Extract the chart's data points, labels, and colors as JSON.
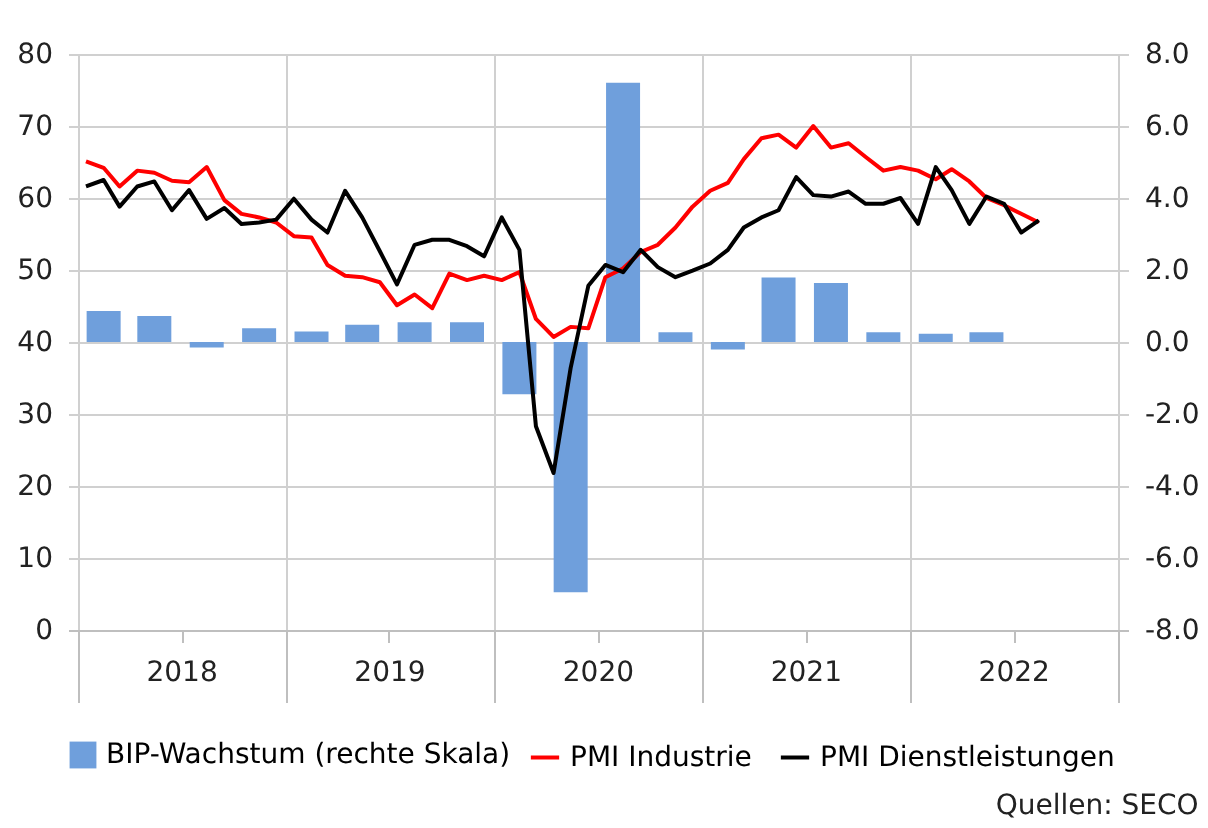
{
  "chart_data": {
    "type": "line",
    "x": [
      "2018-01-15",
      "2018-02-15",
      "2018-03-15",
      "2018-04-15",
      "2018-05-15",
      "2018-06-15",
      "2018-07-15",
      "2018-08-15",
      "2018-09-15",
      "2018-10-15",
      "2018-11-15",
      "2018-12-15",
      "2019-01-15",
      "2019-02-15",
      "2019-03-15",
      "2019-04-15",
      "2019-05-15",
      "2019-06-15",
      "2019-07-15",
      "2019-08-15",
      "2019-09-15",
      "2019-10-15",
      "2019-11-15",
      "2019-12-15",
      "2020-01-15",
      "2020-02-15",
      "2020-03-15",
      "2020-04-15",
      "2020-05-15",
      "2020-06-15",
      "2020-07-15",
      "2020-08-15",
      "2020-09-15",
      "2020-10-15",
      "2020-11-15",
      "2020-12-15",
      "2021-01-15",
      "2021-02-15",
      "2021-03-15",
      "2021-04-15",
      "2021-05-15",
      "2021-06-15",
      "2021-07-15",
      "2021-08-15",
      "2021-09-15",
      "2021-10-15",
      "2021-11-15",
      "2021-12-15",
      "2022-01-15",
      "2022-02-15",
      "2022-03-15",
      "2022-04-15",
      "2022-05-15",
      "2022-06-15",
      "2022-07-15",
      "2022-08-15"
    ],
    "series": [
      {
        "name": "BIP-Wachstum (rechte Skala)",
        "type": "bar",
        "axis": "y2",
        "color": "#6f9fdc",
        "x": [
          "2018-02-15",
          "2018-05-15",
          "2018-08-15",
          "2018-11-15",
          "2019-02-15",
          "2019-05-15",
          "2019-08-15",
          "2019-11-15",
          "2020-02-15",
          "2020-05-15",
          "2020-08-15",
          "2020-11-15",
          "2021-02-15",
          "2021-05-15",
          "2021-08-15",
          "2021-11-15",
          "2022-02-15",
          "2022-05-15"
        ],
        "values": [
          0.86,
          0.72,
          -0.15,
          0.38,
          0.29,
          0.48,
          0.55,
          0.55,
          -1.45,
          -6.95,
          7.2,
          0.27,
          -0.21,
          1.79,
          1.64,
          0.27,
          0.23,
          0.27
        ]
      },
      {
        "name": "PMI Industrie",
        "color": "#ff0000",
        "values": [
          65.1,
          64.2,
          61.6,
          63.8,
          63.5,
          62.4,
          62.2,
          64.3,
          59.7,
          57.8,
          57.3,
          56.6,
          54.7,
          54.5,
          50.7,
          49.2,
          49.0,
          48.3,
          45.1,
          46.6,
          44.7,
          49.5,
          48.6,
          49.2,
          48.6,
          49.7,
          43.2,
          40.7,
          42.1,
          41.9,
          49.0,
          50.2,
          52.5,
          53.5,
          55.9,
          58.8,
          61.0,
          62.1,
          65.4,
          68.3,
          68.8,
          67.0,
          70.0,
          67.0,
          67.6,
          65.7,
          63.8,
          64.3,
          63.8,
          62.6,
          64.0,
          62.3,
          60.0,
          59.0,
          57.8,
          56.6
        ]
      },
      {
        "name": "PMI Dienstleistungen",
        "color": "#000000",
        "values": [
          61.6,
          62.5,
          58.8,
          61.6,
          62.3,
          58.3,
          61.1,
          57.1,
          58.6,
          56.4,
          56.6,
          57.0,
          59.9,
          57.0,
          55.2,
          61.0,
          57.3,
          52.6,
          48.0,
          53.5,
          54.2,
          54.2,
          53.3,
          51.9,
          57.3,
          52.8,
          28.3,
          21.8,
          36.4,
          47.8,
          50.7,
          49.7,
          52.8,
          50.4,
          49.0,
          49.9,
          50.9,
          52.8,
          55.9,
          57.3,
          58.3,
          62.9,
          60.4,
          60.2,
          60.9,
          59.2,
          59.2,
          60.0,
          56.4,
          64.3,
          61.1,
          56.4,
          60.2,
          59.2,
          55.2,
          56.9
        ]
      }
    ],
    "xlim": [
      "2018-01-01",
      "2023-01-01"
    ],
    "xticks": [
      {
        "value": "2018-01-01",
        "label": null
      },
      {
        "value": "2018-07-01",
        "label": "2018"
      },
      {
        "value": "2019-01-01",
        "label": null
      },
      {
        "value": "2019-07-01",
        "label": "2019"
      },
      {
        "value": "2020-01-01",
        "label": null
      },
      {
        "value": "2020-07-01",
        "label": "2020"
      },
      {
        "value": "2021-01-01",
        "label": null
      },
      {
        "value": "2021-07-01",
        "label": "2021"
      },
      {
        "value": "2022-01-01",
        "label": null
      },
      {
        "value": "2022-07-01",
        "label": "2022"
      },
      {
        "value": "2023-01-01",
        "label": null
      }
    ],
    "ylim": [
      0,
      80
    ],
    "yticks": [
      0,
      10,
      20,
      30,
      40,
      50,
      60,
      70,
      80
    ],
    "y2lim": [
      -8,
      8
    ],
    "y2ticks": [
      {
        "value": -8,
        "label": "-8.0"
      },
      {
        "value": -6,
        "label": "-6.0"
      },
      {
        "value": -4,
        "label": "-4.0"
      },
      {
        "value": -2,
        "label": "-2.0"
      },
      {
        "value": 0,
        "label": "0.0"
      },
      {
        "value": 2,
        "label": "2.0"
      },
      {
        "value": 4,
        "label": "4.0"
      },
      {
        "value": 6,
        "label": "6.0"
      },
      {
        "value": 8,
        "label": "8.0"
      }
    ],
    "grid": true,
    "legend": "bottom",
    "line_style": "solid",
    "annotations": [
      "Quellen: SECO"
    ]
  }
}
